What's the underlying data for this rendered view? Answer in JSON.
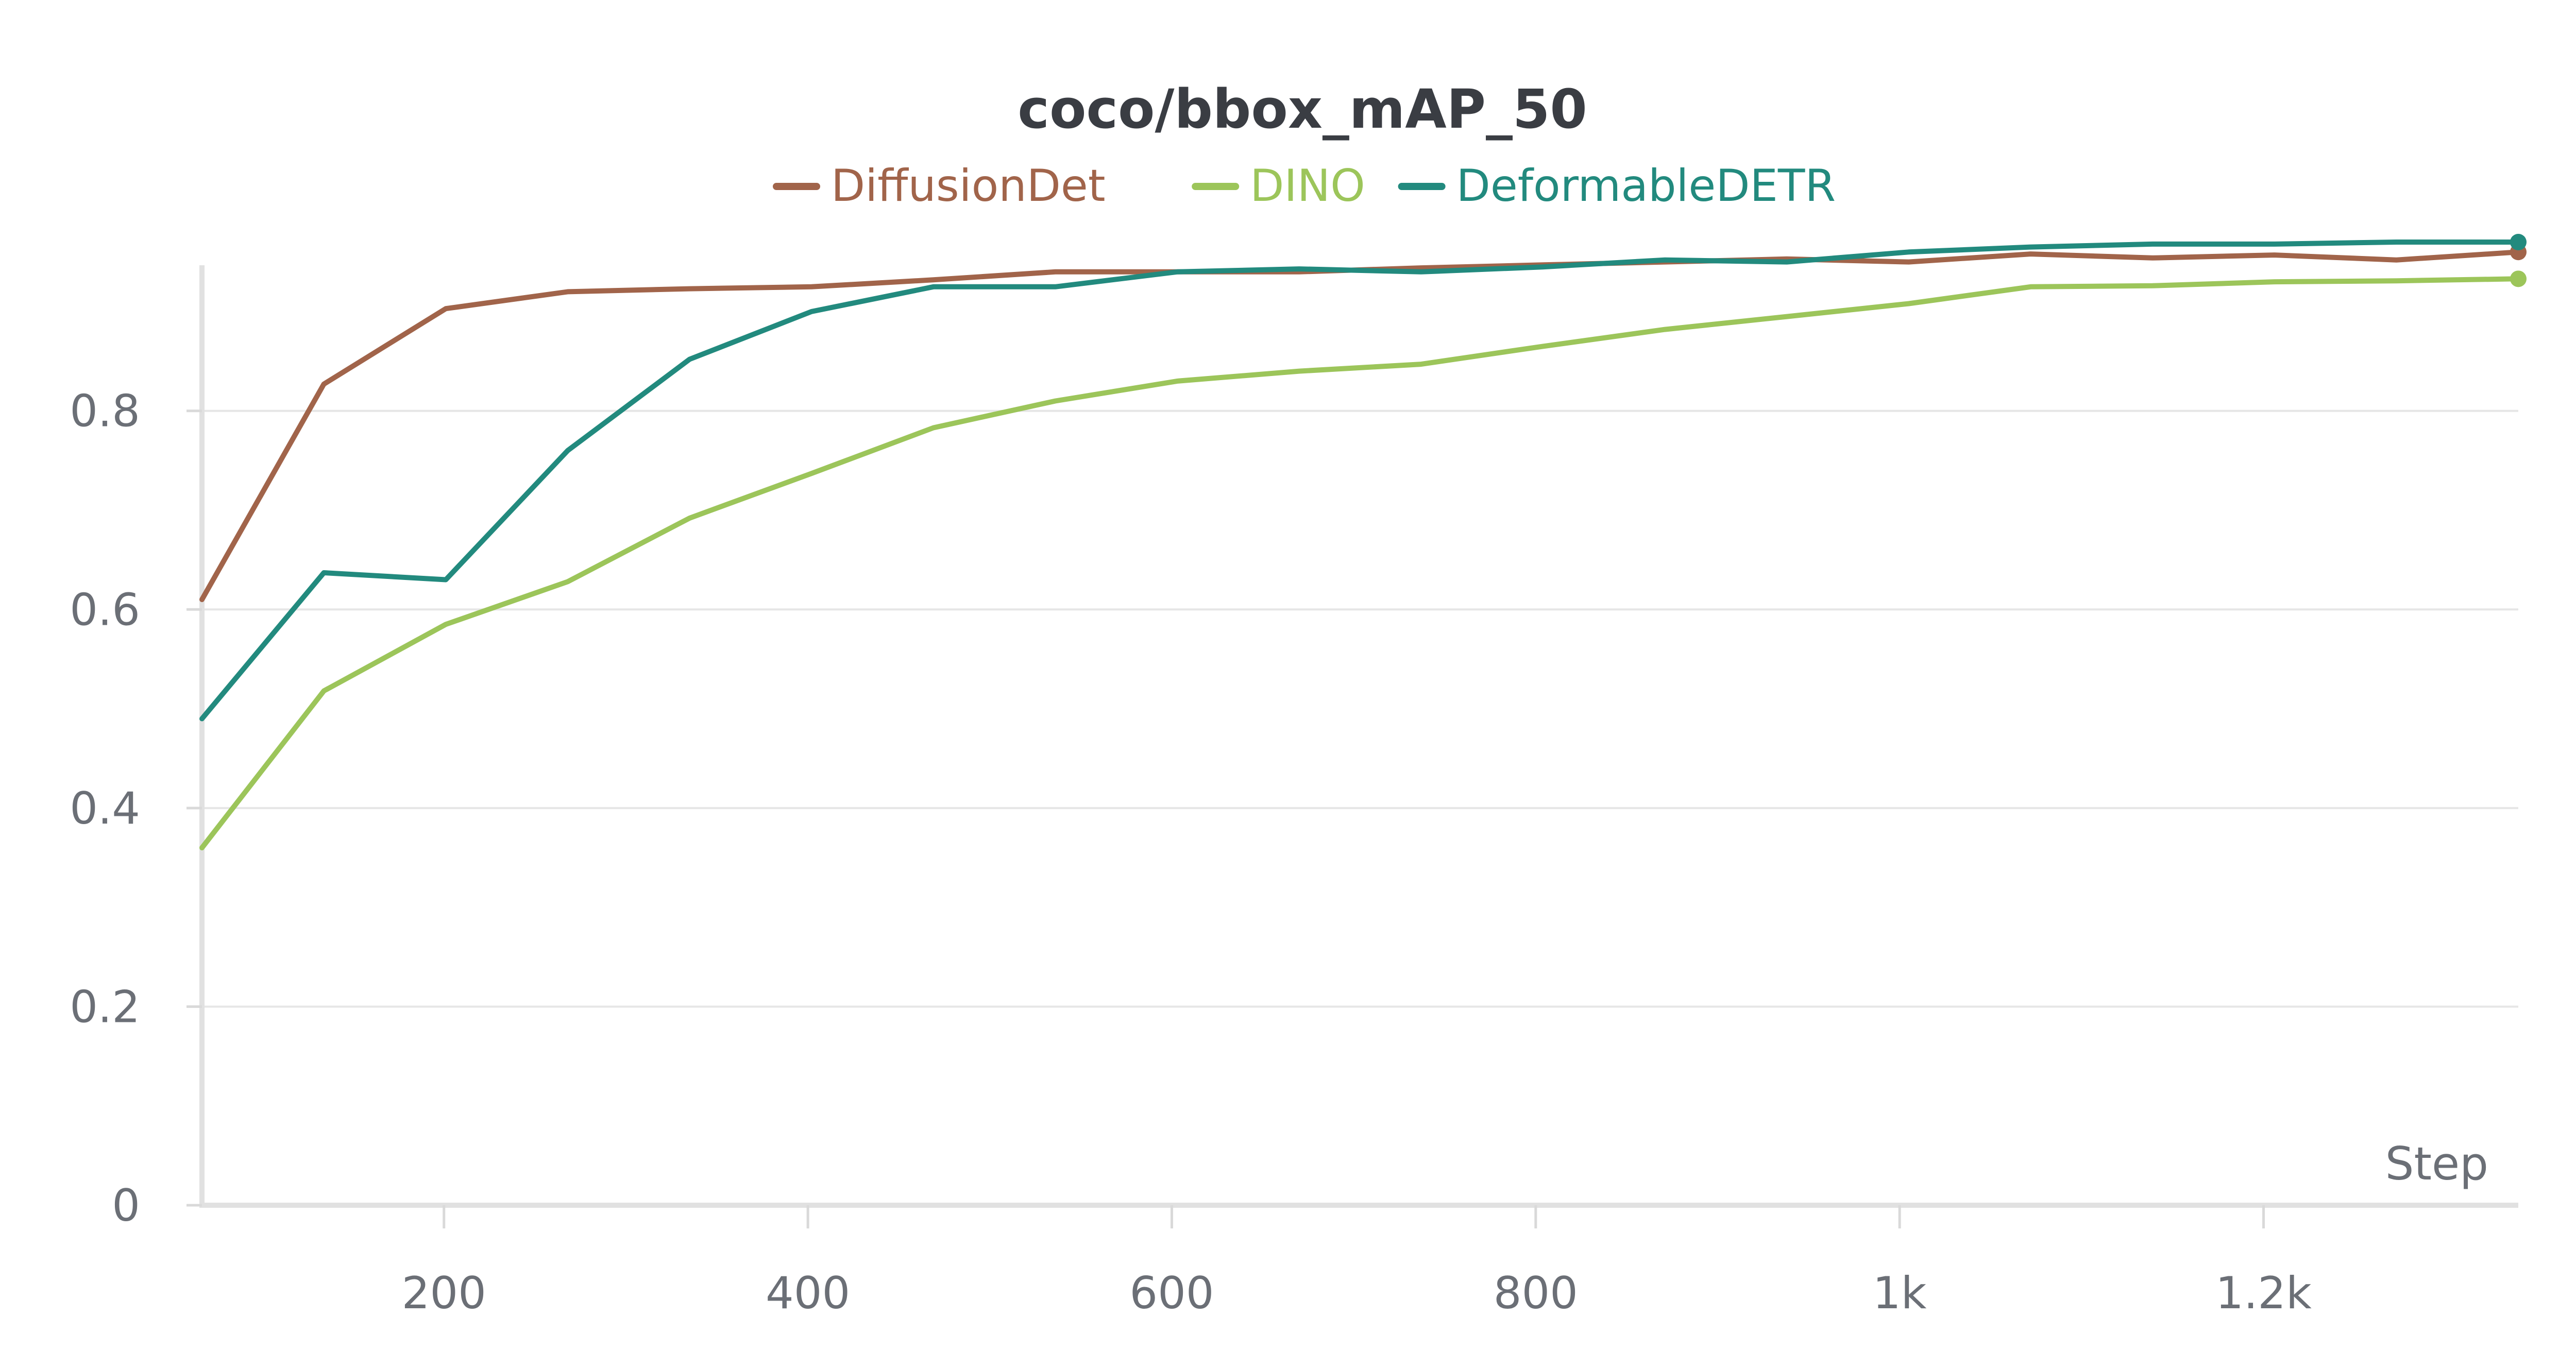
{
  "chart_data": {
    "type": "line",
    "title": "coco/bbox_mAP_50",
    "xlabel": "Step",
    "ylabel": "",
    "x_ticks": [
      {
        "value": 200,
        "label": "200"
      },
      {
        "value": 400,
        "label": "400"
      },
      {
        "value": 600,
        "label": "600"
      },
      {
        "value": 800,
        "label": "800"
      },
      {
        "value": 1000,
        "label": "1k"
      },
      {
        "value": 1200,
        "label": "1.2k"
      }
    ],
    "y_ticks": [
      {
        "value": 0,
        "label": "0"
      },
      {
        "value": 0.2,
        "label": "0.2"
      },
      {
        "value": 0.4,
        "label": "0.4"
      },
      {
        "value": 0.6,
        "label": "0.6"
      },
      {
        "value": 0.8,
        "label": "0.8"
      }
    ],
    "xlim": [
      67,
      1340
    ],
    "ylim": [
      0,
      0.97
    ],
    "grid": "horizontal",
    "legend_position": "top",
    "x": [
      67,
      134,
      201,
      268,
      335,
      402,
      469,
      536,
      603,
      670,
      737,
      804,
      871,
      938,
      1005,
      1072,
      1139,
      1206,
      1273,
      1340
    ],
    "series": [
      {
        "name": "DiffusionDet",
        "color": "#a1644a",
        "values": [
          0.61,
          0.827,
          0.903,
          0.92,
          0.923,
          0.925,
          0.932,
          0.94,
          0.94,
          0.94,
          0.944,
          0.947,
          0.95,
          0.953,
          0.95,
          0.958,
          0.954,
          0.957,
          0.952,
          0.96
        ]
      },
      {
        "name": "DINO",
        "color": "#9cc55a",
        "values": [
          0.36,
          0.518,
          0.585,
          0.628,
          0.692,
          0.737,
          0.783,
          0.81,
          0.83,
          0.84,
          0.847,
          0.865,
          0.882,
          0.895,
          0.908,
          0.925,
          0.926,
          0.93,
          0.931,
          0.933
        ]
      },
      {
        "name": "DeformableDETR",
        "color": "#228a7e",
        "values": [
          0.49,
          0.637,
          0.63,
          0.76,
          0.852,
          0.9,
          0.925,
          0.925,
          0.94,
          0.943,
          0.94,
          0.945,
          0.952,
          0.95,
          0.96,
          0.965,
          0.968,
          0.968,
          0.97,
          0.97
        ]
      }
    ]
  }
}
